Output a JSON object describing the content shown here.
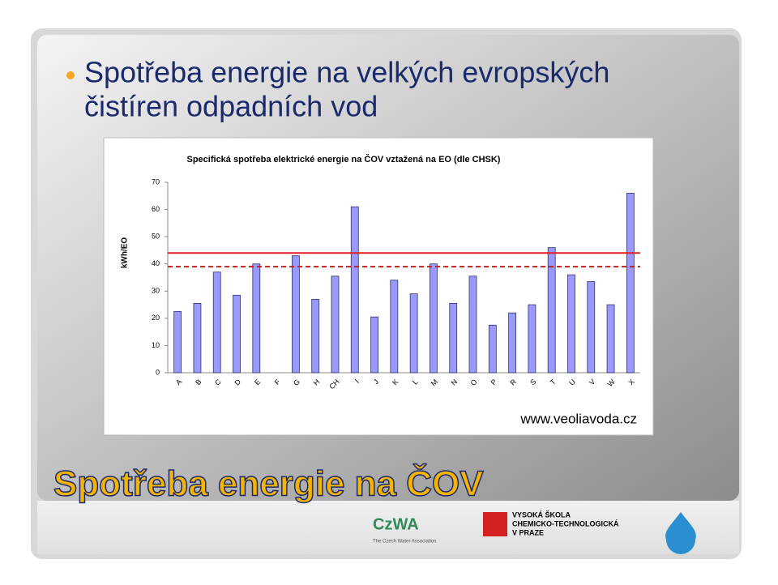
{
  "slide": {
    "title_lines": [
      "Spotřeba energie na velkých evropských",
      "čistíren odpadních vod"
    ],
    "source": "www.veoliavoda.cz",
    "heading": "Spotřeba energie na ČOV",
    "logo_czwa": "CzWA",
    "logo_czwa_sub": "The Czech Water Association",
    "logo_vscht": [
      "VYSOKÁ ŠKOLA",
      "CHEMICKO-TECHNOLOGICKÁ",
      "V PRAZE"
    ]
  },
  "chart_data": {
    "type": "bar",
    "title": "Specifická spotřeba elektrické energie na ČOV vztažená na EO (dle CHSK)",
    "y_label": "kWh/EO",
    "categories": [
      "A",
      "B",
      "C",
      "D",
      "E",
      "F",
      "G",
      "H",
      "CH",
      "I",
      "J",
      "K",
      "L",
      "M",
      "N",
      "O",
      "P",
      "R",
      "S",
      "T",
      "U",
      "V",
      "W",
      "X"
    ],
    "values": [
      22.5,
      25.5,
      37,
      28.5,
      40,
      0,
      43,
      27,
      35.5,
      61,
      20.5,
      34,
      29,
      40,
      25.5,
      35.5,
      17.5,
      22,
      25,
      46,
      36,
      33.5,
      25,
      66
    ],
    "color": "#9999ff",
    "ylim": [
      0,
      70
    ],
    "yticks": [
      0,
      10,
      20,
      30,
      40,
      50,
      60,
      70
    ],
    "reference_lines": [
      {
        "value": 44,
        "style": "solid",
        "color": "#e02020"
      },
      {
        "value": 39,
        "style": "dashed",
        "color": "#c02020"
      }
    ]
  }
}
